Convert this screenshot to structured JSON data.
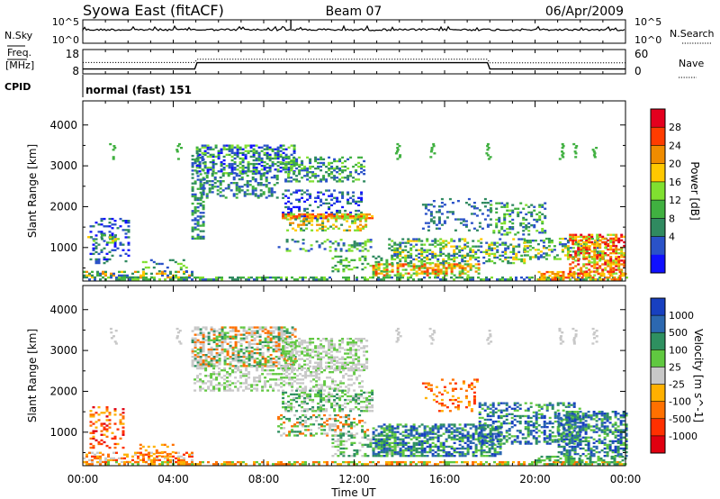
{
  "header": {
    "station": "Syowa East (fitACF)",
    "beam": "Beam 07",
    "date": "06/Apr/2009"
  },
  "nsky": {
    "label": "N.Sky",
    "right_label": "N.Search",
    "tick_top": "10^5",
    "tick_bottom": "10^0",
    "rtick_top": "10^5",
    "rtick_bottom": "10^0"
  },
  "freq": {
    "label_line1": "Freq.",
    "label_line2": "[MHz]",
    "ticks": [
      "18",
      "8"
    ],
    "rticks": [
      "60",
      "0"
    ],
    "right_label": "Nave",
    "series": [
      {
        "name": "freq",
        "x": [
          0,
          4.95,
          5.05,
          17.9,
          18.0,
          24
        ],
        "y": [
          10,
          10,
          12.6,
          12.6,
          10,
          10
        ]
      },
      {
        "name": "nave",
        "x": [
          0,
          4.95,
          5.05,
          17.9,
          18.0,
          24
        ],
        "y": [
          28,
          28,
          36,
          36,
          27,
          27
        ]
      }
    ]
  },
  "cpid": {
    "label": "CPID",
    "value": "normal (fast) 151"
  },
  "chart_data": [
    {
      "type": "heatmap",
      "name": "power",
      "ylabel": "Slant Range [km]",
      "ylim": [
        180,
        4590
      ],
      "xlim": [
        0,
        24
      ],
      "yticks": [
        "4000",
        "3000",
        "2000",
        "1000"
      ],
      "ytick_values": [
        4000,
        3000,
        2000,
        1000
      ],
      "colorbar": {
        "label": "Power [dB]",
        "ticks": [
          "28",
          "24",
          "20",
          "16",
          "12",
          "8",
          "4"
        ],
        "colors": [
          "#e4001e",
          "#ff3c00",
          "#f08c00",
          "#ffc800",
          "#80e030",
          "#40b040",
          "#308a60",
          "#2a52c8",
          "#1010ff"
        ]
      }
    },
    {
      "type": "heatmap",
      "name": "velocity",
      "ylabel": "Slant Range [km]",
      "ylim": [
        180,
        4590
      ],
      "xlim": [
        0,
        24
      ],
      "yticks": [
        "4000",
        "3000",
        "2000",
        "1000"
      ],
      "ytick_values": [
        4000,
        3000,
        2000,
        1000
      ],
      "colorbar": {
        "label": "Velocity [m s^-1]",
        "ticks": [
          "1000",
          "500",
          "100",
          "25",
          "-25",
          "-100",
          "-500",
          "-1000"
        ],
        "colors": [
          "#1840c0",
          "#2c68b0",
          "#2e9060",
          "#60c840",
          "#c8c8c8",
          "#ffb000",
          "#ff7000",
          "#ff3000",
          "#e00010"
        ]
      }
    }
  ],
  "xaxis": {
    "ticks": [
      "00:00",
      "04:00",
      "08:00",
      "12:00",
      "16:00",
      "20:00",
      "00:00"
    ],
    "label": "Time UT"
  }
}
